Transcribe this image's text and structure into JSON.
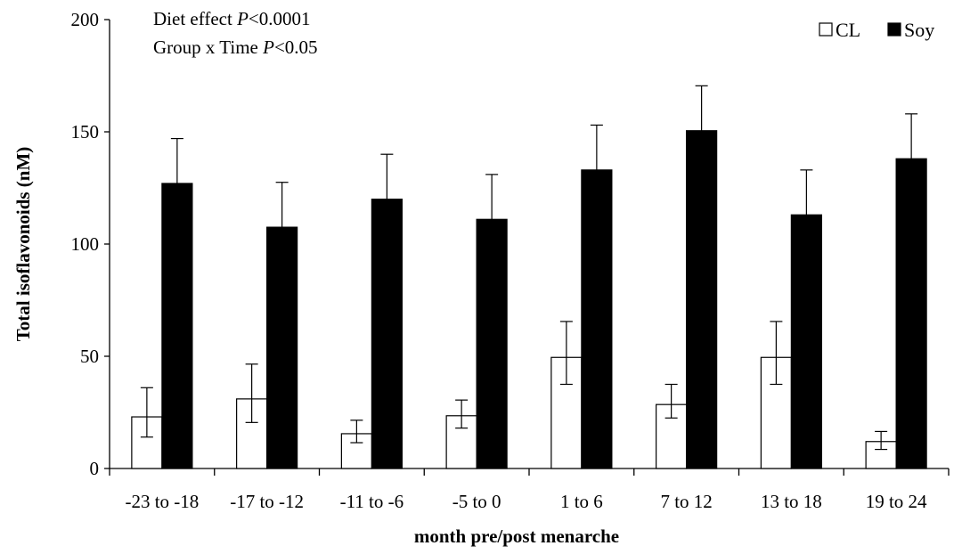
{
  "chart_data": {
    "type": "bar",
    "title": "",
    "xlabel": "month pre/post menarche",
    "ylabel": "Total isoflavonoids (nM)",
    "ylim": [
      0,
      200
    ],
    "yticks": [
      0,
      50,
      100,
      150,
      200
    ],
    "grid": false,
    "legend_position": "top-right",
    "categories": [
      "-23 to -18",
      "-17 to -12",
      "-11 to -6",
      "-5 to 0",
      "1 to 6",
      "7 to 12",
      "13 to 18",
      "19 to 24"
    ],
    "series": [
      {
        "name": "CL",
        "fill": "#ffffff",
        "values": [
          23,
          31,
          15.5,
          23.5,
          49.5,
          28.5,
          49.5,
          12
        ],
        "err_upper": [
          36,
          46.5,
          21.5,
          30.5,
          65.5,
          37.5,
          65.5,
          16.5
        ],
        "err_lower": [
          14,
          20.5,
          11.5,
          18,
          37.5,
          22.5,
          37.5,
          8.5
        ]
      },
      {
        "name": "Soy",
        "fill": "#000000",
        "values": [
          127,
          107.5,
          120,
          111,
          133,
          150.5,
          113,
          138
        ],
        "err_upper": [
          147,
          127.5,
          140,
          131,
          153,
          170.5,
          133,
          158
        ]
      }
    ],
    "annotations": [
      {
        "prefix": "Diet effect ",
        "p": "P",
        "rest": "<0.0001"
      },
      {
        "prefix": "Group x Time ",
        "p": "P",
        "rest": "<0.05"
      }
    ]
  }
}
